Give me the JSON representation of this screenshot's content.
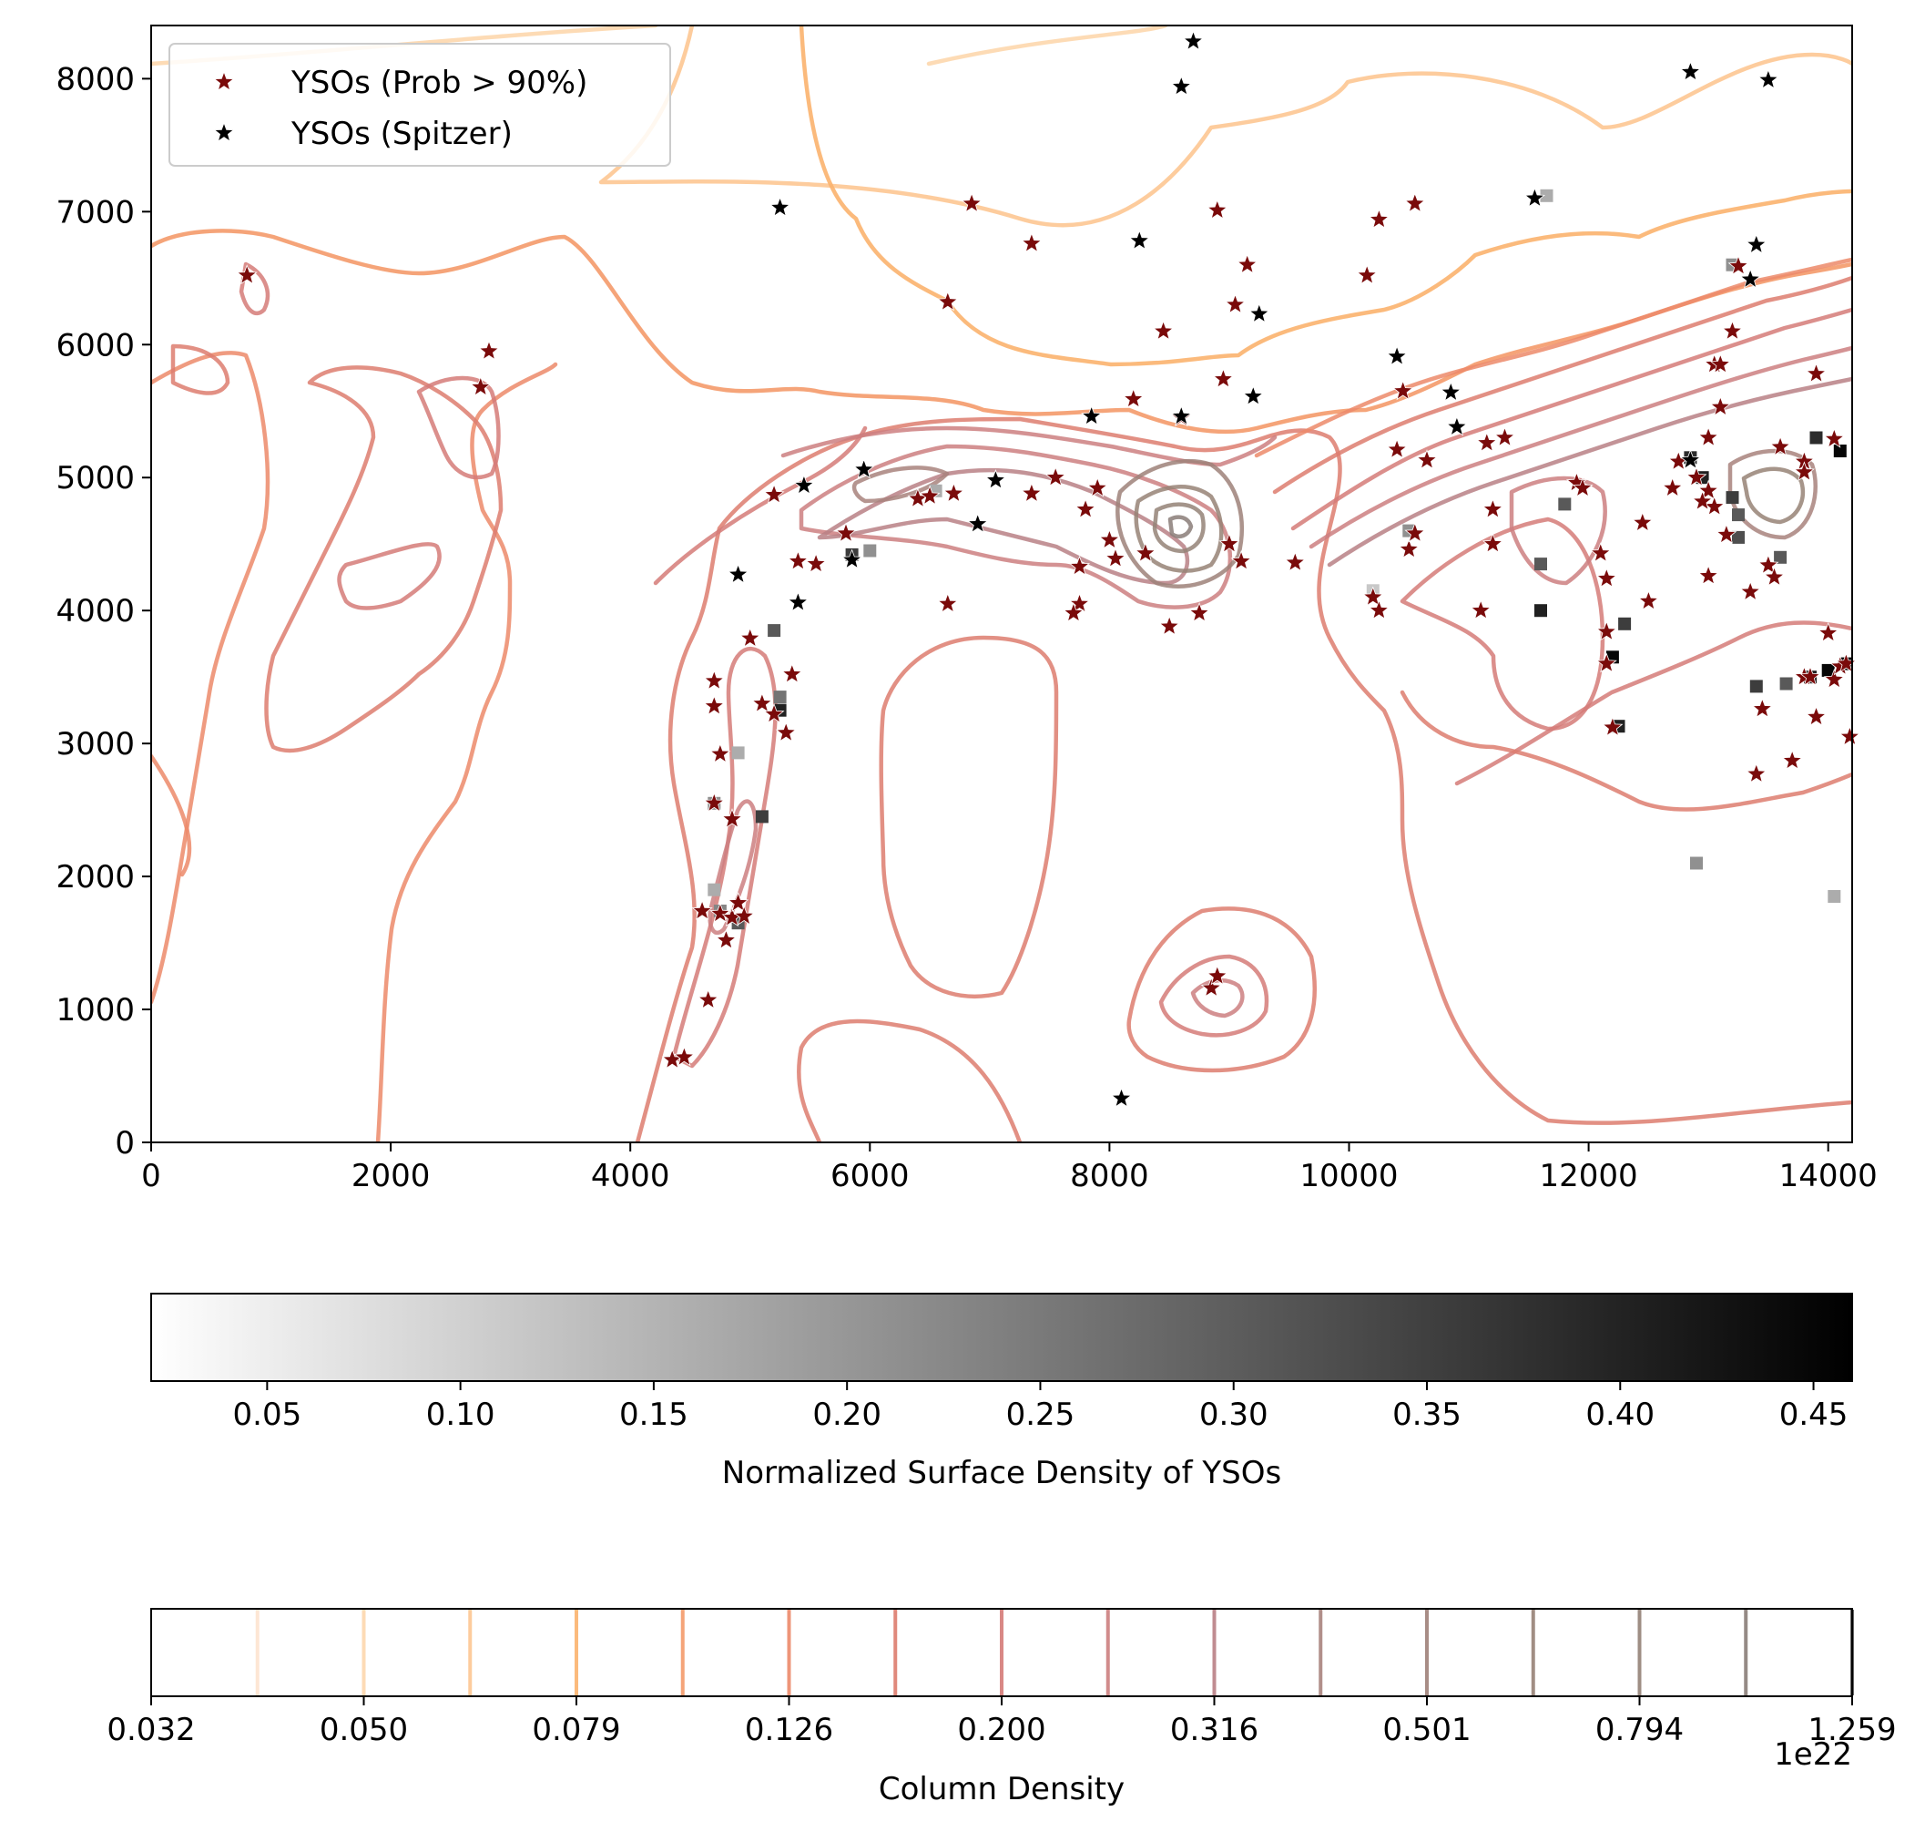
{
  "chart_data": [
    {
      "type": "scatter",
      "title": "",
      "xlabel": "",
      "ylabel": "",
      "xlim": [
        0,
        14200
      ],
      "ylim": [
        0,
        8400
      ],
      "xticks": [
        0,
        2000,
        4000,
        6000,
        8000,
        10000,
        12000,
        14000
      ],
      "yticks": [
        0,
        1000,
        2000,
        3000,
        4000,
        5000,
        6000,
        7000,
        8000
      ],
      "xtick_labels": [
        "0",
        "2000",
        "4000",
        "6000",
        "8000",
        "10000",
        "12000",
        "14000"
      ],
      "ytick_labels": [
        "0",
        "1000",
        "2000",
        "3000",
        "4000",
        "5000",
        "6000",
        "7000",
        "8000"
      ],
      "grid": false,
      "legend": {
        "placement": "top-left",
        "entries": [
          "YSOs (Prob > 90%)",
          "YSOs (Spitzer)"
        ]
      },
      "series": [
        {
          "name": "YSOs (Prob > 90%)",
          "marker": "star",
          "color": "#7a0a0a",
          "points": [
            [
              800,
              6520
            ],
            [
              2750,
              5680
            ],
            [
              2820,
              5950
            ],
            [
              5200,
              4870
            ],
            [
              5400,
              4370
            ],
            [
              5550,
              4350
            ],
            [
              5800,
              4580
            ],
            [
              6400,
              4840
            ],
            [
              6500,
              4860
            ],
            [
              6650,
              4050
            ],
            [
              6700,
              4880
            ],
            [
              7350,
              4880
            ],
            [
              7550,
              5000
            ],
            [
              7750,
              4050
            ],
            [
              7700,
              3980
            ],
            [
              7800,
              4760
            ],
            [
              7900,
              4920
            ],
            [
              7750,
              4330
            ],
            [
              8000,
              4530
            ],
            [
              8050,
              4390
            ],
            [
              8200,
              5590
            ],
            [
              8300,
              4430
            ],
            [
              8500,
              3880
            ],
            [
              8600,
              5450
            ],
            [
              8750,
              3980
            ],
            [
              9000,
              4500
            ],
            [
              9100,
              4370
            ],
            [
              9550,
              4360
            ],
            [
              6850,
              7060
            ],
            [
              7350,
              6760
            ],
            [
              6650,
              6320
            ],
            [
              8450,
              6100
            ],
            [
              8900,
              7010
            ],
            [
              9150,
              6600
            ],
            [
              9050,
              6300
            ],
            [
              8950,
              5740
            ],
            [
              10150,
              6520
            ],
            [
              10250,
              6940
            ],
            [
              10550,
              7060
            ],
            [
              10450,
              5650
            ],
            [
              10400,
              5210
            ],
            [
              10650,
              5130
            ],
            [
              10500,
              4460
            ],
            [
              10550,
              4580
            ],
            [
              10200,
              4100
            ],
            [
              10250,
              4000
            ],
            [
              11150,
              5260
            ],
            [
              11300,
              5300
            ],
            [
              11200,
              4760
            ],
            [
              11200,
              4500
            ],
            [
              11100,
              4000
            ],
            [
              11900,
              4960
            ],
            [
              11950,
              4920
            ],
            [
              12100,
              4430
            ],
            [
              12150,
              4240
            ],
            [
              12150,
              3840
            ],
            [
              12150,
              3600
            ],
            [
              12200,
              3120
            ],
            [
              12450,
              4660
            ],
            [
              12500,
              4070
            ],
            [
              12700,
              4920
            ],
            [
              12750,
              5120
            ],
            [
              12900,
              5000
            ],
            [
              13000,
              4900
            ],
            [
              13050,
              4780
            ],
            [
              12950,
              4820
            ],
            [
              13000,
              5300
            ],
            [
              13100,
              5530
            ],
            [
              13050,
              5850
            ],
            [
              13100,
              5850
            ],
            [
              13200,
              6100
            ],
            [
              13250,
              6590
            ],
            [
              13150,
              4570
            ],
            [
              13000,
              4260
            ],
            [
              13350,
              4140
            ],
            [
              13400,
              2770
            ],
            [
              13500,
              4340
            ],
            [
              13550,
              4250
            ],
            [
              13450,
              3260
            ],
            [
              13600,
              5230
            ],
            [
              13800,
              5120
            ],
            [
              13800,
              5040
            ],
            [
              13700,
              2870
            ],
            [
              13800,
              3500
            ],
            [
              13850,
              3500
            ],
            [
              13900,
              3200
            ],
            [
              14000,
              3830
            ],
            [
              14050,
              3480
            ],
            [
              14100,
              3580
            ],
            [
              14150,
              3600
            ],
            [
              14180,
              3050
            ],
            [
              13900,
              5780
            ],
            [
              14050,
              5290
            ],
            [
              4700,
              3470
            ],
            [
              4700,
              3280
            ],
            [
              4750,
              2920
            ],
            [
              4700,
              2550
            ],
            [
              4850,
              2430
            ],
            [
              4600,
              1740
            ],
            [
              4750,
              1720
            ],
            [
              4800,
              1520
            ],
            [
              4850,
              1690
            ],
            [
              4900,
              1800
            ],
            [
              4950,
              1700
            ],
            [
              4650,
              1070
            ],
            [
              4350,
              620
            ],
            [
              4450,
              640
            ],
            [
              5000,
              3790
            ],
            [
              5100,
              3300
            ],
            [
              5200,
              3220
            ],
            [
              5300,
              3080
            ],
            [
              5350,
              3520
            ],
            [
              8850,
              1160
            ],
            [
              8900,
              1250
            ]
          ]
        },
        {
          "name": "YSOs (Spitzer)",
          "marker": "star",
          "color": "#000000",
          "points": [
            [
              5250,
              7030
            ],
            [
              8700,
              8280
            ],
            [
              8600,
              7940
            ],
            [
              8250,
              6780
            ],
            [
              9250,
              6230
            ],
            [
              9200,
              5610
            ],
            [
              7850,
              5460
            ],
            [
              8600,
              5460
            ],
            [
              5450,
              4940
            ],
            [
              5950,
              5060
            ],
            [
              7050,
              4980
            ],
            [
              6900,
              4650
            ],
            [
              5850,
              4380
            ],
            [
              4900,
              4270
            ],
            [
              5400,
              4060
            ],
            [
              8100,
              330
            ],
            [
              10400,
              5910
            ],
            [
              10850,
              5640
            ],
            [
              10900,
              5380
            ],
            [
              11550,
              7100
            ],
            [
              12850,
              8050
            ],
            [
              13500,
              7990
            ],
            [
              13400,
              6750
            ],
            [
              13350,
              6490
            ],
            [
              12850,
              5130
            ]
          ]
        }
      ]
    },
    {
      "type": "heatmap",
      "title": "",
      "xlabel": "Normalized Surface Density of YSOs",
      "colormap": "greys",
      "range": [
        0.02,
        0.46
      ],
      "ticks": [
        0.05,
        0.1,
        0.15,
        0.2,
        0.25,
        0.3,
        0.35,
        0.4,
        0.45
      ],
      "tick_labels": [
        "0.05",
        "0.10",
        "0.15",
        "0.20",
        "0.25",
        "0.30",
        "0.35",
        "0.40",
        "0.45"
      ]
    },
    {
      "type": "heatmap",
      "title": "",
      "xlabel": "Column Density",
      "offset_label": "1e22",
      "scale": "log",
      "range": [
        0.032,
        1.259
      ],
      "tick_labels": [
        "0.032",
        "0.050",
        "0.079",
        "0.126",
        "0.200",
        "0.316",
        "0.501",
        "0.794",
        "1.259"
      ],
      "levels": [
        0.04,
        0.063,
        0.1,
        0.158,
        0.251,
        0.398,
        0.631,
        1.0
      ],
      "level_colors": [
        "#fde3cf",
        "#fdd7ad",
        "#fdc792",
        "#fbb26e",
        "#f49a6a",
        "#ec8a6a",
        "#dd7c6e",
        "#d57b78",
        "#cc7f80",
        "#b98085",
        "#a8837d",
        "#9e8179",
        "#978276",
        "#948277",
        "#8a7d78",
        "#555555"
      ]
    }
  ]
}
